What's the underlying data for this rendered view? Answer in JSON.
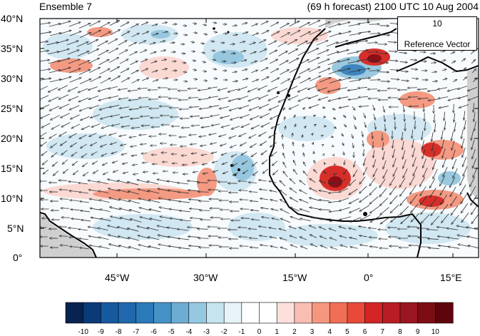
{
  "header": {
    "left_title": "Ensemble 7",
    "right_title": "(69 h forecast) 2100 UTC 10 Aug 2004"
  },
  "reference_vector": {
    "magnitude": "10",
    "label": "Reference Vector"
  },
  "axes": {
    "y_ticks": [
      "40°N",
      "35°N",
      "30°N",
      "25°N",
      "20°N",
      "15°N",
      "10°N",
      "5°N",
      "0°"
    ],
    "x_ticks": [
      "45°W",
      "30°W",
      "15°W",
      "0°",
      "15°E"
    ],
    "lon_range": [
      -57,
      18
    ],
    "lat_range": [
      0,
      40
    ]
  },
  "colorbar": {
    "labels": [
      "-10",
      "-9",
      "-8",
      "-7",
      "-6",
      "-5",
      "-4",
      "-3",
      "-2",
      "-1",
      "0",
      "1",
      "2",
      "3",
      "4",
      "5",
      "6",
      "7",
      "8",
      "9",
      "10"
    ],
    "colors": [
      "#08234f",
      "#0b3a78",
      "#17599f",
      "#2068ad",
      "#2a79b8",
      "#4492c6",
      "#6eadd3",
      "#96c8e0",
      "#c5e4ef",
      "#e6f3f8",
      "#ffffff",
      "#ffffff",
      "#fde0dc",
      "#f9beb2",
      "#f6967f",
      "#f06e55",
      "#e8493a",
      "#d32426",
      "#b81d23",
      "#9a1620",
      "#7d0d15",
      "#5d040c"
    ]
  },
  "map": {
    "colors": {
      "land_gray": "#cfcfcf",
      "coast": "#000000",
      "vector": "#333333"
    }
  }
}
